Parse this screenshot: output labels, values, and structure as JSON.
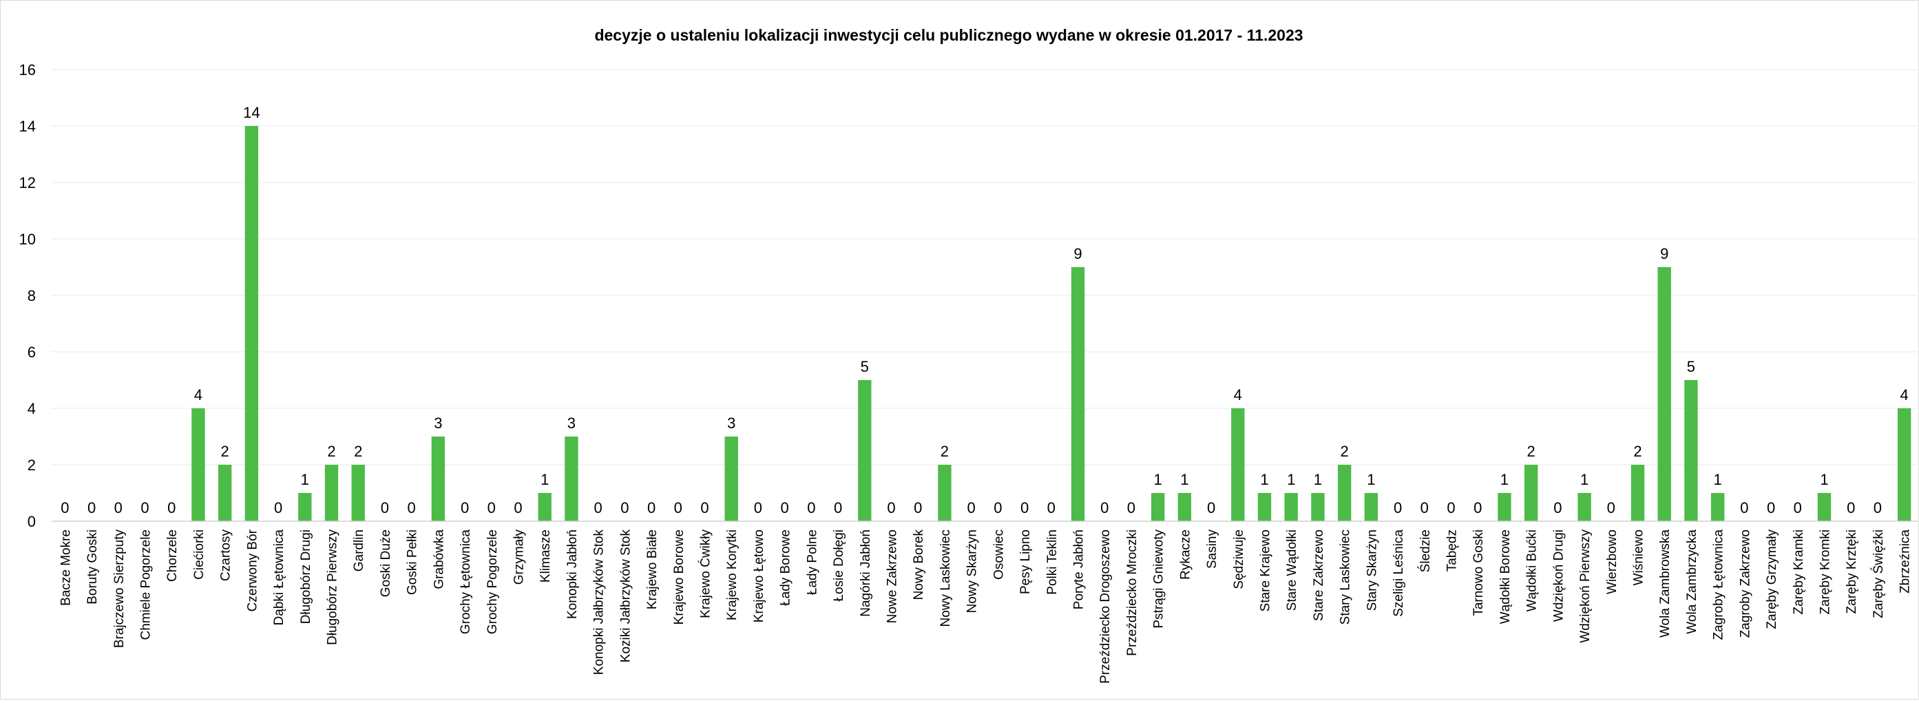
{
  "chart_data": {
    "type": "bar",
    "title": "decyzje o ustaleniu lokalizacji inwestycji celu publicznego wydane w okresie 01.2017  - 11.2023",
    "xlabel": "",
    "ylabel": "",
    "ylim": [
      0,
      16
    ],
    "yticks": [
      "0",
      "2",
      "4",
      "6",
      "8",
      "10",
      "12",
      "14",
      "16"
    ],
    "grid": true,
    "legend": "none",
    "bar_color": "#4CBB47",
    "categories": [
      "Bacze Mokre",
      "Boruty Goski",
      "Brajczewo Sierzputy",
      "Chmiele Pogorzele",
      "Chorzele",
      "Ciećiorki",
      "Czartosy",
      "Czerwony Bór",
      "Dąbki Łętownica",
      "Długobórz Drugi",
      "Długobórz Pierwszy",
      "Gardlin",
      "Goski Duże",
      "Goski Pełki",
      "Grabówka",
      "Grochy Łętownica",
      "Grochy Pogorzele",
      "Grzymały",
      "Klimasze",
      "Konopki Jabłoń",
      "Konopki Jałbrzyków Stok",
      "Koziki Jałbrzyków Stok",
      "Krajewo Białe",
      "Krajewo Borowe",
      "Krajewo Ćwikły",
      "Krajewo Korytki",
      "Krajewo Łętowo",
      "Łady Borowe",
      "Łady Polne",
      "Łosie Dołęgi",
      "Nagórki Jabłoń",
      "Nowe Zakrzewo",
      "Nowy Borek",
      "Nowy Laskowiec",
      "Nowy Skarżyn",
      "Osowiec",
      "Pęsy Lipno",
      "Polki Teklin",
      "Poryte Jabłoń",
      "Przeździecko Drogoszewo",
      "Przeździecko Mroczki",
      "Pstrągi Gniewoty",
      "Rykacze",
      "Sasiny",
      "Sędziwuje",
      "Stare Krajewo",
      "Stare Wądołki",
      "Stare Zakrzewo",
      "Stary Laskowiec",
      "Stary Skarżyn",
      "Szeligi Leśnica",
      "Śledzie",
      "Tabędz",
      "Tarnowo Goski",
      "Wądołki Borowe",
      "Wądołki Bućki",
      "Wdziękoń Drugi",
      "Wdziękoń Pierwszy",
      "Wierzbowo",
      "Wiśniewo",
      "Wola Zambrowska",
      "Wola Zambrzycka",
      "Zagroby Łętownica",
      "Zagroby Zakrzewo",
      "Zaręby Grzymały",
      "Zaręby Kramki",
      "Zaręby Kromki",
      "Zaręby Krztęki",
      "Zaręby Święźki",
      "Zbrzeźnica"
    ],
    "values": [
      0,
      0,
      0,
      0,
      0,
      4,
      2,
      14,
      0,
      1,
      2,
      2,
      0,
      0,
      3,
      0,
      0,
      0,
      1,
      3,
      0,
      0,
      0,
      0,
      0,
      3,
      0,
      0,
      0,
      0,
      5,
      0,
      0,
      2,
      0,
      0,
      0,
      0,
      9,
      0,
      0,
      1,
      1,
      0,
      4,
      1,
      1,
      1,
      2,
      1,
      0,
      0,
      0,
      0,
      1,
      2,
      0,
      1,
      0,
      2,
      9,
      5,
      1,
      0,
      0,
      0,
      1,
      0,
      0,
      4
    ]
  }
}
